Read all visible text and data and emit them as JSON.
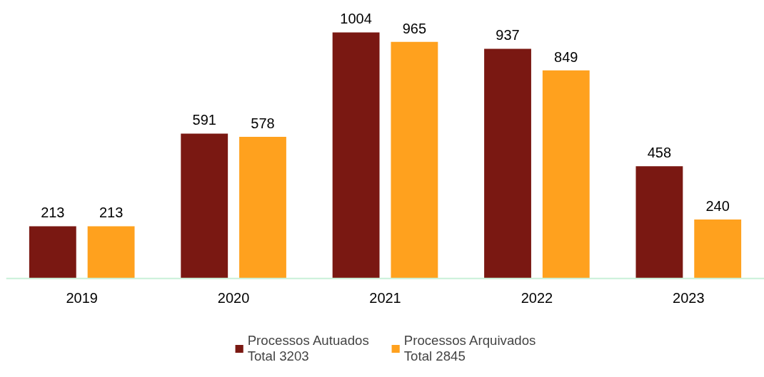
{
  "chart_data": {
    "type": "bar",
    "categories": [
      "2019",
      "2020",
      "2021",
      "2022",
      "2023"
    ],
    "series": [
      {
        "name": "Processos Autuados\nTotal 3203",
        "color": "#7a1812",
        "values": [
          213,
          591,
          1004,
          937,
          458
        ]
      },
      {
        "name": "Processos Arquivados\nTotal 2845",
        "color": "#ffa11e",
        "values": [
          213,
          578,
          965,
          849,
          240
        ]
      }
    ],
    "data_labels": true,
    "legend": "bottom",
    "grid": false
  }
}
